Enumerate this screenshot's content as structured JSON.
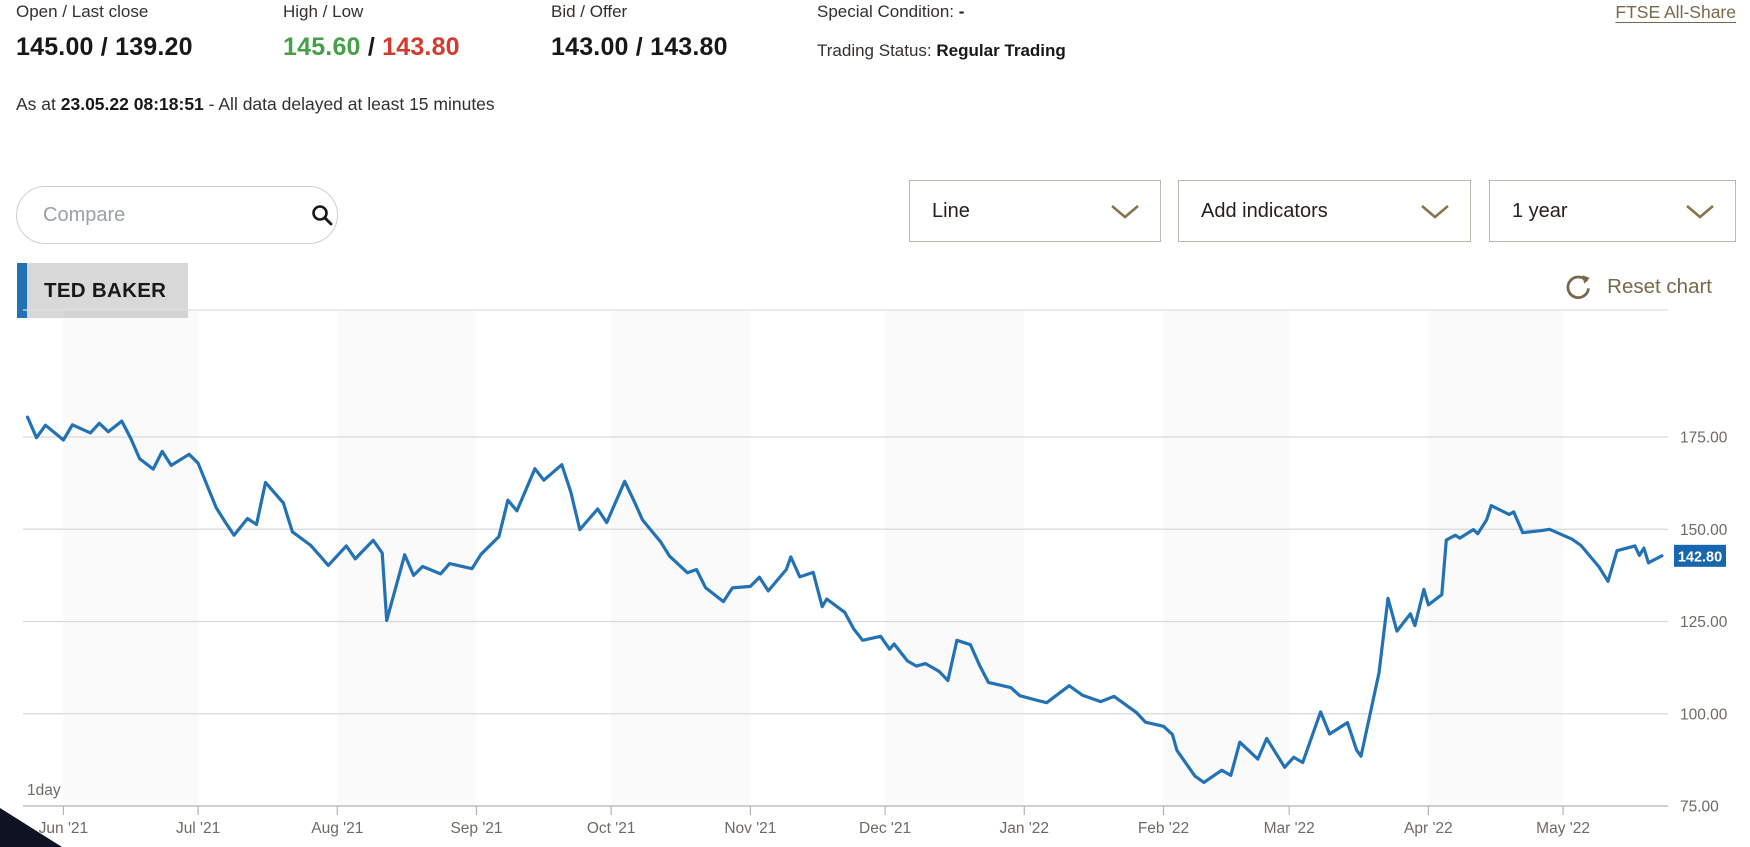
{
  "header": {
    "open_last_label": "Open / Last close",
    "open_last_value": "145.00 / 139.20",
    "high_low_label": "High / Low",
    "high_value": "145.60",
    "hl_separator": " / ",
    "low_value": "143.80",
    "bid_offer_label": "Bid / Offer",
    "bid_offer_value": "143.00 / 143.80",
    "special_condition_label": "Special Condition:",
    "special_condition_value": "-",
    "trading_status_label": "Trading Status:",
    "trading_status_value": "Regular Trading",
    "index_link_label": "FTSE All-Share",
    "as_at_prefix": "As at ",
    "as_at_timestamp": "23.05.22 08:18:51",
    "as_at_suffix": " - All data delayed at least 15 minutes"
  },
  "toolbar": {
    "compare_placeholder": "Compare",
    "chart_type_selected": "Line",
    "indicators_label": "Add indicators",
    "range_selected": "1 year"
  },
  "series_chip": {
    "label": "TED BAKER"
  },
  "chart_controls": {
    "reset_label": "Reset chart"
  },
  "colors": {
    "line_blue": "#2272b5",
    "badge_blue": "#1866ad",
    "high_green": "#45a049",
    "low_red": "#d23b2e",
    "gold_accent": "#7a684a",
    "chevron_gold": "#8a744c",
    "grid_gray": "#d9d9d9",
    "axis_gray": "#b3b3b3",
    "axis_text_gray": "#6e6a66",
    "chip_gray": "#d8d8d8",
    "corner_navy": "#0e1223"
  },
  "chart_data": {
    "type": "line",
    "title": "TED BAKER share price, 1 year, 1 day interval",
    "interval_label": "1day",
    "legend": [
      "TED BAKER"
    ],
    "grid": true,
    "y_axis_side": "right",
    "y_gridlines": [
      175,
      150,
      125,
      100,
      75
    ],
    "ylim": [
      75,
      187
    ],
    "last_price": 142.8,
    "x_ticks": [
      {
        "date": "2021-06-01",
        "label": "Jun '21"
      },
      {
        "date": "2021-07-01",
        "label": "Jul '21"
      },
      {
        "date": "2021-08-01",
        "label": "Aug '21"
      },
      {
        "date": "2021-09-01",
        "label": "Sep '21"
      },
      {
        "date": "2021-10-01",
        "label": "Oct '21"
      },
      {
        "date": "2021-11-01",
        "label": "Nov '21"
      },
      {
        "date": "2021-12-01",
        "label": "Dec '21"
      },
      {
        "date": "2022-01-01",
        "label": "Jan '22"
      },
      {
        "date": "2022-02-01",
        "label": "Feb '22"
      },
      {
        "date": "2022-03-01",
        "label": "Mar '22"
      },
      {
        "date": "2022-04-01",
        "label": "Apr '22"
      },
      {
        "date": "2022-05-01",
        "label": "May '22"
      }
    ],
    "points": [
      [
        "2021-05-24",
        180.4
      ],
      [
        "2021-05-26",
        174.8
      ],
      [
        "2021-05-28",
        178.2
      ],
      [
        "2021-06-01",
        174.2
      ],
      [
        "2021-06-03",
        178.3
      ],
      [
        "2021-06-07",
        176.1
      ],
      [
        "2021-06-09",
        178.7
      ],
      [
        "2021-06-11",
        176.4
      ],
      [
        "2021-06-14",
        179.3
      ],
      [
        "2021-06-16",
        174.6
      ],
      [
        "2021-06-18",
        169.1
      ],
      [
        "2021-06-21",
        166.3
      ],
      [
        "2021-06-23",
        171.1
      ],
      [
        "2021-06-25",
        167.3
      ],
      [
        "2021-06-29",
        170.3
      ],
      [
        "2021-07-01",
        167.9
      ],
      [
        "2021-07-05",
        155.9
      ],
      [
        "2021-07-07",
        152.0
      ],
      [
        "2021-07-09",
        148.4
      ],
      [
        "2021-07-12",
        152.9
      ],
      [
        "2021-07-14",
        151.3
      ],
      [
        "2021-07-16",
        162.7
      ],
      [
        "2021-07-20",
        157.1
      ],
      [
        "2021-07-22",
        149.3
      ],
      [
        "2021-07-26",
        145.7
      ],
      [
        "2021-07-28",
        143.0
      ],
      [
        "2021-07-30",
        140.2
      ],
      [
        "2021-08-03",
        145.5
      ],
      [
        "2021-08-05",
        142.0
      ],
      [
        "2021-08-09",
        147.0
      ],
      [
        "2021-08-11",
        143.6
      ],
      [
        "2021-08-12",
        125.3
      ],
      [
        "2021-08-16",
        143.1
      ],
      [
        "2021-08-18",
        137.5
      ],
      [
        "2021-08-20",
        139.9
      ],
      [
        "2021-08-24",
        137.9
      ],
      [
        "2021-08-26",
        140.7
      ],
      [
        "2021-08-31",
        139.3
      ],
      [
        "2021-09-02",
        143.2
      ],
      [
        "2021-09-06",
        148.0
      ],
      [
        "2021-09-08",
        157.9
      ],
      [
        "2021-09-10",
        155.0
      ],
      [
        "2021-09-14",
        166.4
      ],
      [
        "2021-09-16",
        163.3
      ],
      [
        "2021-09-20",
        167.5
      ],
      [
        "2021-09-22",
        160.1
      ],
      [
        "2021-09-24",
        149.9
      ],
      [
        "2021-09-28",
        155.5
      ],
      [
        "2021-09-30",
        151.8
      ],
      [
        "2021-10-04",
        163.0
      ],
      [
        "2021-10-06",
        157.9
      ],
      [
        "2021-10-08",
        152.5
      ],
      [
        "2021-10-12",
        146.6
      ],
      [
        "2021-10-14",
        142.7
      ],
      [
        "2021-10-18",
        138.2
      ],
      [
        "2021-10-20",
        139.1
      ],
      [
        "2021-10-22",
        134.2
      ],
      [
        "2021-10-26",
        130.4
      ],
      [
        "2021-10-28",
        134.1
      ],
      [
        "2021-11-01",
        134.5
      ],
      [
        "2021-11-03",
        137.0
      ],
      [
        "2021-11-05",
        133.3
      ],
      [
        "2021-11-09",
        139.1
      ],
      [
        "2021-11-10",
        142.5
      ],
      [
        "2021-11-12",
        137.1
      ],
      [
        "2021-11-15",
        138.3
      ],
      [
        "2021-11-17",
        129.0
      ],
      [
        "2021-11-18",
        131.1
      ],
      [
        "2021-11-22",
        127.5
      ],
      [
        "2021-11-24",
        123.0
      ],
      [
        "2021-11-26",
        119.9
      ],
      [
        "2021-11-30",
        121.0
      ],
      [
        "2021-12-02",
        117.5
      ],
      [
        "2021-12-03",
        118.9
      ],
      [
        "2021-12-06",
        114.3
      ],
      [
        "2021-12-08",
        112.9
      ],
      [
        "2021-12-10",
        113.6
      ],
      [
        "2021-12-13",
        111.5
      ],
      [
        "2021-12-15",
        109.0
      ],
      [
        "2021-12-17",
        119.9
      ],
      [
        "2021-12-20",
        118.7
      ],
      [
        "2021-12-22",
        113.2
      ],
      [
        "2021-12-24",
        108.5
      ],
      [
        "2021-12-29",
        107.1
      ],
      [
        "2021-12-31",
        104.9
      ],
      [
        "2022-01-04",
        103.6
      ],
      [
        "2022-01-06",
        103.0
      ],
      [
        "2022-01-11",
        107.6
      ],
      [
        "2022-01-14",
        105.0
      ],
      [
        "2022-01-18",
        103.3
      ],
      [
        "2022-01-21",
        104.7
      ],
      [
        "2022-01-26",
        100.3
      ],
      [
        "2022-01-28",
        97.7
      ],
      [
        "2022-02-01",
        96.6
      ],
      [
        "2022-02-03",
        94.4
      ],
      [
        "2022-02-04",
        90.1
      ],
      [
        "2022-02-08",
        83.1
      ],
      [
        "2022-02-10",
        81.4
      ],
      [
        "2022-02-14",
        84.7
      ],
      [
        "2022-02-16",
        83.3
      ],
      [
        "2022-02-18",
        92.3
      ],
      [
        "2022-02-22",
        87.7
      ],
      [
        "2022-02-24",
        93.3
      ],
      [
        "2022-02-28",
        85.5
      ],
      [
        "2022-03-02",
        88.2
      ],
      [
        "2022-03-04",
        86.8
      ],
      [
        "2022-03-08",
        100.5
      ],
      [
        "2022-03-10",
        94.5
      ],
      [
        "2022-03-14",
        97.6
      ],
      [
        "2022-03-16",
        90.2
      ],
      [
        "2022-03-17",
        88.5
      ],
      [
        "2022-03-21",
        111.1
      ],
      [
        "2022-03-23",
        131.3
      ],
      [
        "2022-03-25",
        122.4
      ],
      [
        "2022-03-28",
        127.1
      ],
      [
        "2022-03-29",
        123.9
      ],
      [
        "2022-03-31",
        133.7
      ],
      [
        "2022-04-01",
        129.5
      ],
      [
        "2022-04-04",
        132.3
      ],
      [
        "2022-04-05",
        147.1
      ],
      [
        "2022-04-07",
        148.4
      ],
      [
        "2022-04-08",
        147.6
      ],
      [
        "2022-04-11",
        149.9
      ],
      [
        "2022-04-12",
        148.8
      ],
      [
        "2022-04-14",
        152.6
      ],
      [
        "2022-04-15",
        156.4
      ],
      [
        "2022-04-19",
        154.0
      ],
      [
        "2022-04-20",
        154.7
      ],
      [
        "2022-04-22",
        149.1
      ],
      [
        "2022-04-26",
        149.6
      ],
      [
        "2022-04-28",
        150.0
      ],
      [
        "2022-05-03",
        147.3
      ],
      [
        "2022-05-05",
        145.6
      ],
      [
        "2022-05-09",
        139.8
      ],
      [
        "2022-05-11",
        135.9
      ],
      [
        "2022-05-13",
        144.2
      ],
      [
        "2022-05-17",
        145.5
      ],
      [
        "2022-05-18",
        142.9
      ],
      [
        "2022-05-19",
        144.9
      ],
      [
        "2022-05-20",
        140.9
      ],
      [
        "2022-05-23",
        142.8
      ]
    ]
  }
}
